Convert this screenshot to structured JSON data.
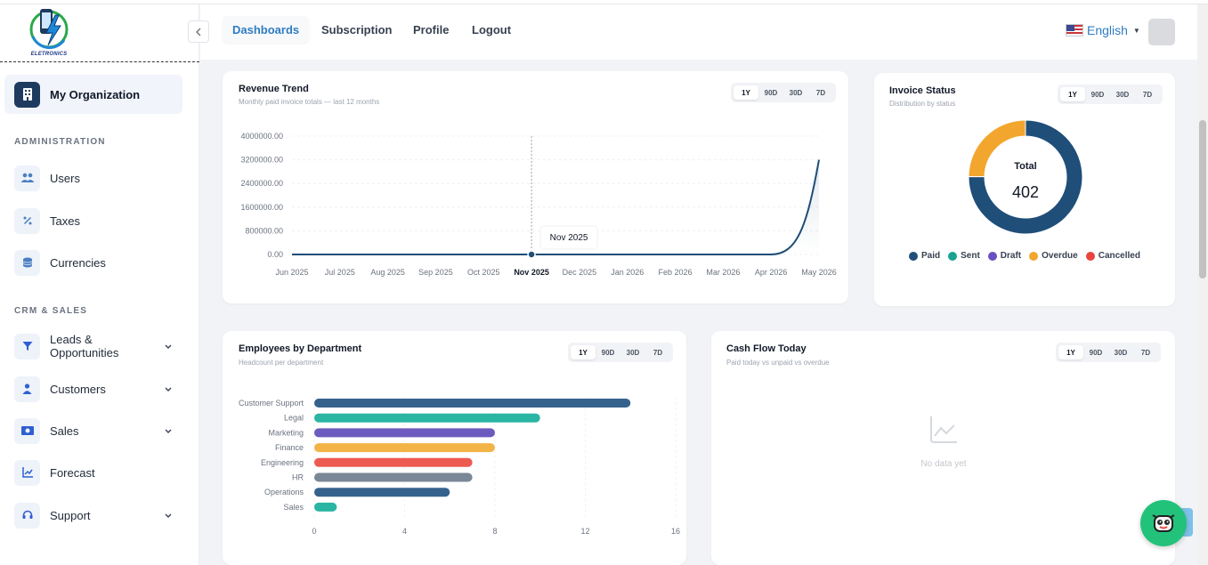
{
  "brand": {
    "logo_text": "ELETRONICS"
  },
  "sidebar": {
    "org_label": "My Organization",
    "sections": {
      "administration": "ADMINISTRATION",
      "crm_sales": "CRM & SALES"
    },
    "items": [
      {
        "label": "Users",
        "icon": "users-icon"
      },
      {
        "label": "Taxes",
        "icon": "percent-icon"
      },
      {
        "label": "Currencies",
        "icon": "coins-icon"
      },
      {
        "label": "Leads & Opportunities",
        "icon": "filter-icon"
      },
      {
        "label": "Customers",
        "icon": "user-icon"
      },
      {
        "label": "Sales",
        "icon": "money-icon"
      },
      {
        "label": "Forecast",
        "icon": "chart-line-icon"
      },
      {
        "label": "Support",
        "icon": "headset-icon"
      }
    ]
  },
  "header": {
    "tabs": [
      "Dashboards",
      "Subscription",
      "Profile",
      "Logout"
    ],
    "active_tab": "Dashboards",
    "language": "English"
  },
  "range_options": [
    "1Y",
    "90D",
    "30D",
    "7D"
  ],
  "revenue": {
    "title": "Revenue Trend",
    "subtitle": "Monthly paid invoice totals — last 12 months",
    "tooltip": "Nov 2025",
    "highlight": "Nov 2025"
  },
  "invoice_status": {
    "title": "Invoice Status",
    "subtitle": "Distribution by status",
    "total_label": "Total",
    "total_value": "402"
  },
  "employees": {
    "title": "Employees by Department",
    "subtitle": "Headcount per department"
  },
  "cashflow": {
    "title": "Cash Flow Today",
    "subtitle": "Paid today vs unpaid vs overdue",
    "empty_text": "No data yet"
  },
  "chart_data": [
    {
      "type": "line",
      "title": "Revenue Trend",
      "x": [
        "Jun 2025",
        "Jul 2025",
        "Aug 2025",
        "Sep 2025",
        "Oct 2025",
        "Nov 2025",
        "Dec 2025",
        "Jan 2026",
        "Feb 2026",
        "Mar 2026",
        "Apr 2026",
        "May 2026"
      ],
      "values": [
        0,
        0,
        0,
        0,
        0,
        0,
        0,
        0,
        0,
        0,
        0,
        3200000
      ],
      "yticks": [
        "4000000.00",
        "3200000.00",
        "2400000.00",
        "1600000.00",
        "800000.00",
        "0.00"
      ],
      "ylim": [
        0,
        4000000
      ],
      "color": "#1e4e79"
    },
    {
      "type": "pie",
      "title": "Invoice Status",
      "labels": [
        "Paid",
        "Sent",
        "Draft",
        "Overdue",
        "Cancelled"
      ],
      "values": [
        302,
        0,
        0,
        100,
        0
      ],
      "colors": [
        "#1f4e79",
        "#1aa391",
        "#6a4fc2",
        "#f2a62e",
        "#e8453c"
      ]
    },
    {
      "type": "bar",
      "orientation": "horizontal",
      "title": "Employees by Department",
      "categories": [
        "Customer Support",
        "Legal",
        "Marketing",
        "Finance",
        "Engineering",
        "HR",
        "Operations",
        "Sales"
      ],
      "values": [
        14,
        10,
        8,
        8,
        7,
        7,
        6,
        1
      ],
      "colors": [
        "#35628d",
        "#2bb5a3",
        "#6e5bbf",
        "#f2b347",
        "#ec5a52",
        "#7a8796",
        "#35628d",
        "#2bb5a3"
      ],
      "xticks": [
        "0",
        "4",
        "8",
        "12",
        "16"
      ],
      "xlim": [
        0,
        16
      ]
    }
  ]
}
